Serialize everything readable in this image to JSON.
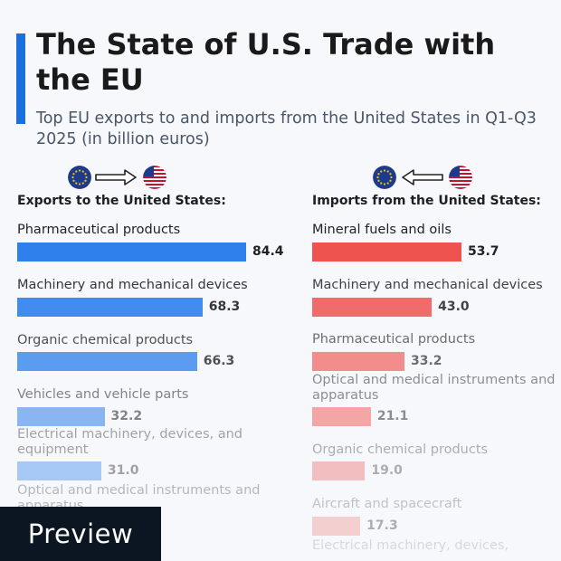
{
  "title": "The State of U.S. Trade with the EU",
  "subtitle": "Top EU exports to and imports from the United States in Q1-Q3 2025 (in billion euros)",
  "preview_label": "Preview",
  "icons": {
    "eu_flag": "eu-flag-icon",
    "us_flag": "us-flag-icon",
    "right_arrow": "right-arrow-icon",
    "left_arrow": "left-arrow-icon"
  },
  "chart_data": [
    {
      "type": "bar",
      "title": "Exports to the United States:",
      "orientation": "horizontal",
      "color": "#2f80ed",
      "categories": [
        "Pharmaceutical products",
        "Machinery and mechanical devices",
        "Organic chemical products",
        "Vehicles and vehicle parts",
        "Electrical machinery, devices, and equipment",
        "Optical and medical instruments and apparatus"
      ],
      "values": [
        84.4,
        68.3,
        66.3,
        32.2,
        31.0,
        null
      ],
      "value_labels": [
        "84.4",
        "68.3",
        "66.3",
        "32.2",
        "31.0",
        ""
      ]
    },
    {
      "type": "bar",
      "title": "Imports from the United States:",
      "orientation": "horizontal",
      "color": "#ef5350",
      "categories": [
        "Mineral fuels and oils",
        "Machinery and mechanical devices",
        "Pharmaceutical products",
        "Optical and medical instruments and apparatus",
        "Organic chemical products",
        "Aircraft and spacecraft",
        "Electrical machinery, devices,"
      ],
      "values": [
        53.7,
        43.0,
        33.2,
        21.1,
        19.0,
        17.3,
        null
      ],
      "value_labels": [
        "53.7",
        "43.0",
        "33.2",
        "21.1",
        "19.0",
        "17.3",
        ""
      ]
    }
  ]
}
